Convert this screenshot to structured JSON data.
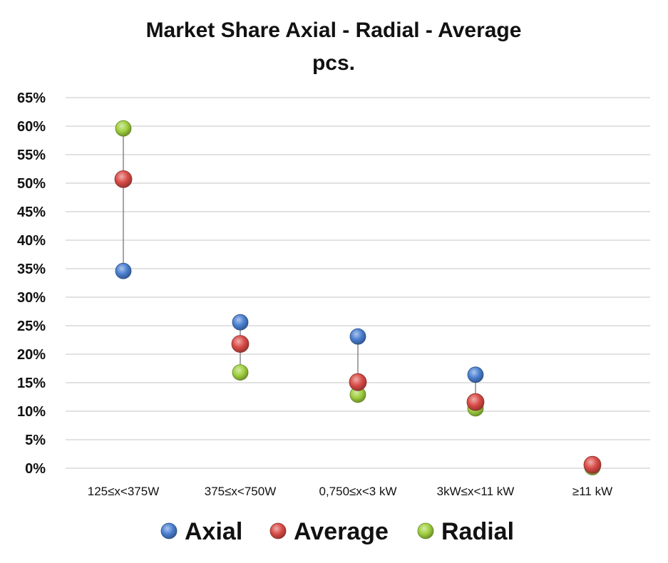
{
  "chart_data": {
    "type": "scatter",
    "title_lines": [
      "Market Share Axial - Radial - Average",
      "pcs."
    ],
    "categories": [
      "125≤x<375W",
      "375≤x<750W",
      "0,750≤x<3 kW",
      "3kW≤x<11 kW",
      "≥11 kW"
    ],
    "ylim": [
      0,
      65
    ],
    "y_ticks": [
      0,
      5,
      10,
      15,
      20,
      25,
      30,
      35,
      40,
      45,
      50,
      55,
      60,
      65
    ],
    "y_tick_format": "%",
    "grid": true,
    "legend_position": "bottom",
    "series": [
      {
        "name": "Axial",
        "values": [
          34.6,
          25.6,
          23.1,
          16.4,
          0.2
        ],
        "color": "#4a7fd1"
      },
      {
        "name": "Average",
        "values": [
          50.7,
          21.8,
          15.1,
          11.6,
          0.6
        ],
        "color": "#d94b46"
      },
      {
        "name": "Radial",
        "values": [
          59.6,
          16.8,
          12.9,
          10.5,
          0.2
        ],
        "color": "#9fcf3e"
      }
    ]
  }
}
